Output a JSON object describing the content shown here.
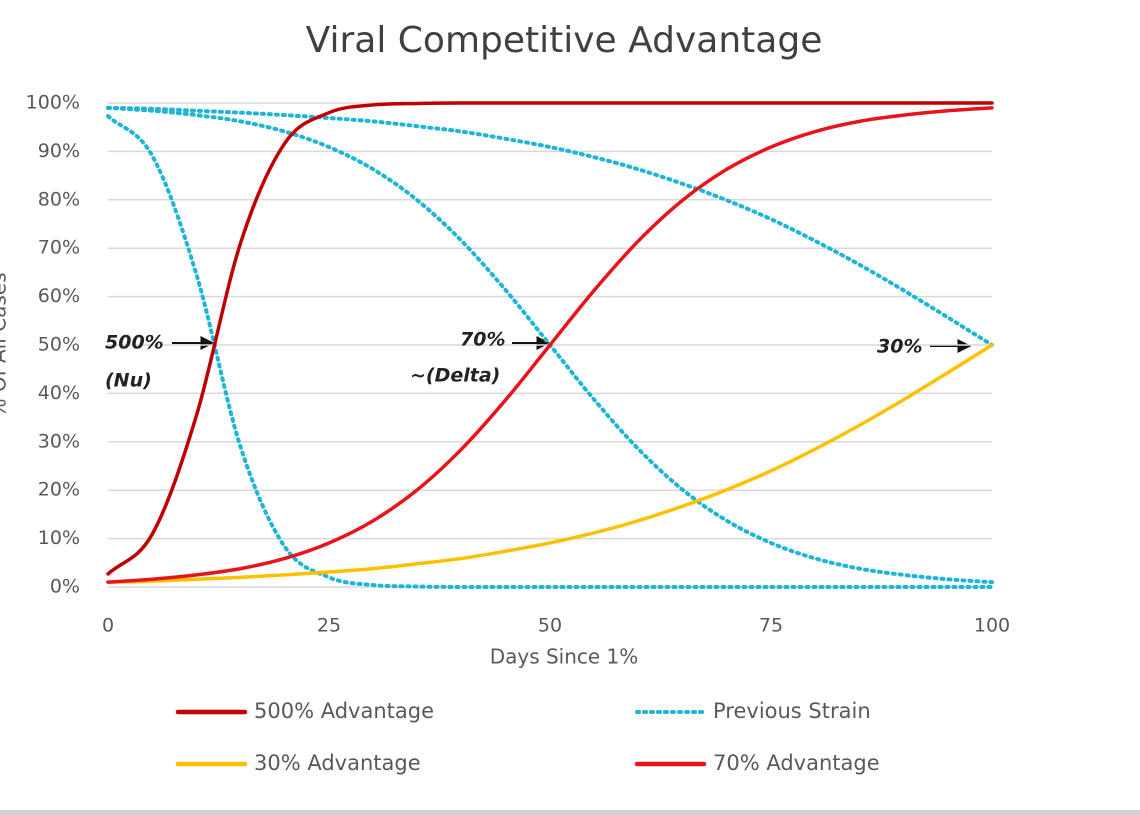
{
  "chart_data": {
    "type": "line",
    "title": "Viral Competitive Advantage",
    "x_label": "Days Since 1%",
    "y_label": "% Of All Cases",
    "x": [
      0,
      5,
      10,
      15,
      20,
      25,
      30,
      35,
      40,
      45,
      50,
      55,
      60,
      65,
      70,
      75,
      80,
      85,
      90,
      95,
      100
    ],
    "xlim": [
      0,
      100
    ],
    "xticks": [
      0,
      25,
      50,
      75,
      100
    ],
    "ylim": [
      0,
      100
    ],
    "yticks": [
      {
        "value": 0,
        "label": "0%"
      },
      {
        "value": 10,
        "label": "10%"
      },
      {
        "value": 20,
        "label": "20%"
      },
      {
        "value": 30,
        "label": "30%"
      },
      {
        "value": 40,
        "label": "40%"
      },
      {
        "value": 50,
        "label": "50%"
      },
      {
        "value": 60,
        "label": "60%"
      },
      {
        "value": 70,
        "label": "70%"
      },
      {
        "value": 80,
        "label": "80%"
      },
      {
        "value": 90,
        "label": "90%"
      },
      {
        "value": 100,
        "label": "100%"
      }
    ],
    "grid": true,
    "legend": "bottom",
    "series": [
      {
        "name": "500% Advantage",
        "color": "#c00000",
        "dashed": false,
        "values": [
          2.7,
          10.9,
          35.4,
          71.1,
          91.7,
          98.0,
          99.6,
          99.9,
          100,
          100,
          100,
          100,
          100,
          100,
          100,
          100,
          100,
          100,
          100,
          100,
          100
        ]
      },
      {
        "name": "Previous Strain",
        "color": "#1fb5d6",
        "dashed": true,
        "values": [
          [
            97.3,
            89.1,
            64.6,
            28.9,
            8.3,
            2.0,
            0.4,
            0.1,
            0,
            0,
            0,
            0,
            0,
            0,
            0,
            0,
            0,
            0,
            0,
            0,
            0
          ],
          [
            99.0,
            98.4,
            97.5,
            96.2,
            94.1,
            90.9,
            86.3,
            79.9,
            71.5,
            61.3,
            50.0,
            38.7,
            28.5,
            20.1,
            13.7,
            9.1,
            5.9,
            3.8,
            2.5,
            1.6,
            1.0
          ],
          [
            99.0,
            98.8,
            98.4,
            98.0,
            97.5,
            96.9,
            96.2,
            95.2,
            94.1,
            92.6,
            90.9,
            88.8,
            86.3,
            83.3,
            79.9,
            76.0,
            71.5,
            66.6,
            61.3,
            55.7,
            50.0
          ]
        ]
      },
      {
        "name": "30% Advantage",
        "color": "#ffc000",
        "dashed": false,
        "values": [
          1.0,
          1.2,
          1.6,
          2.0,
          2.5,
          3.1,
          3.8,
          4.8,
          5.9,
          7.4,
          9.1,
          11.2,
          13.7,
          16.7,
          20.1,
          24.0,
          28.5,
          33.4,
          38.7,
          44.3,
          50.0
        ]
      },
      {
        "name": "70% Advantage",
        "color": "#e8141b",
        "dashed": false,
        "values": [
          1.0,
          1.6,
          2.5,
          3.8,
          5.9,
          9.1,
          13.7,
          20.1,
          28.5,
          38.7,
          50.0,
          61.3,
          71.5,
          79.9,
          86.3,
          90.9,
          94.1,
          96.2,
          97.5,
          98.4,
          99.0
        ]
      }
    ],
    "annotations": [
      "500%",
      "(Nu)",
      "70%",
      "~(Delta)",
      "30%"
    ]
  }
}
